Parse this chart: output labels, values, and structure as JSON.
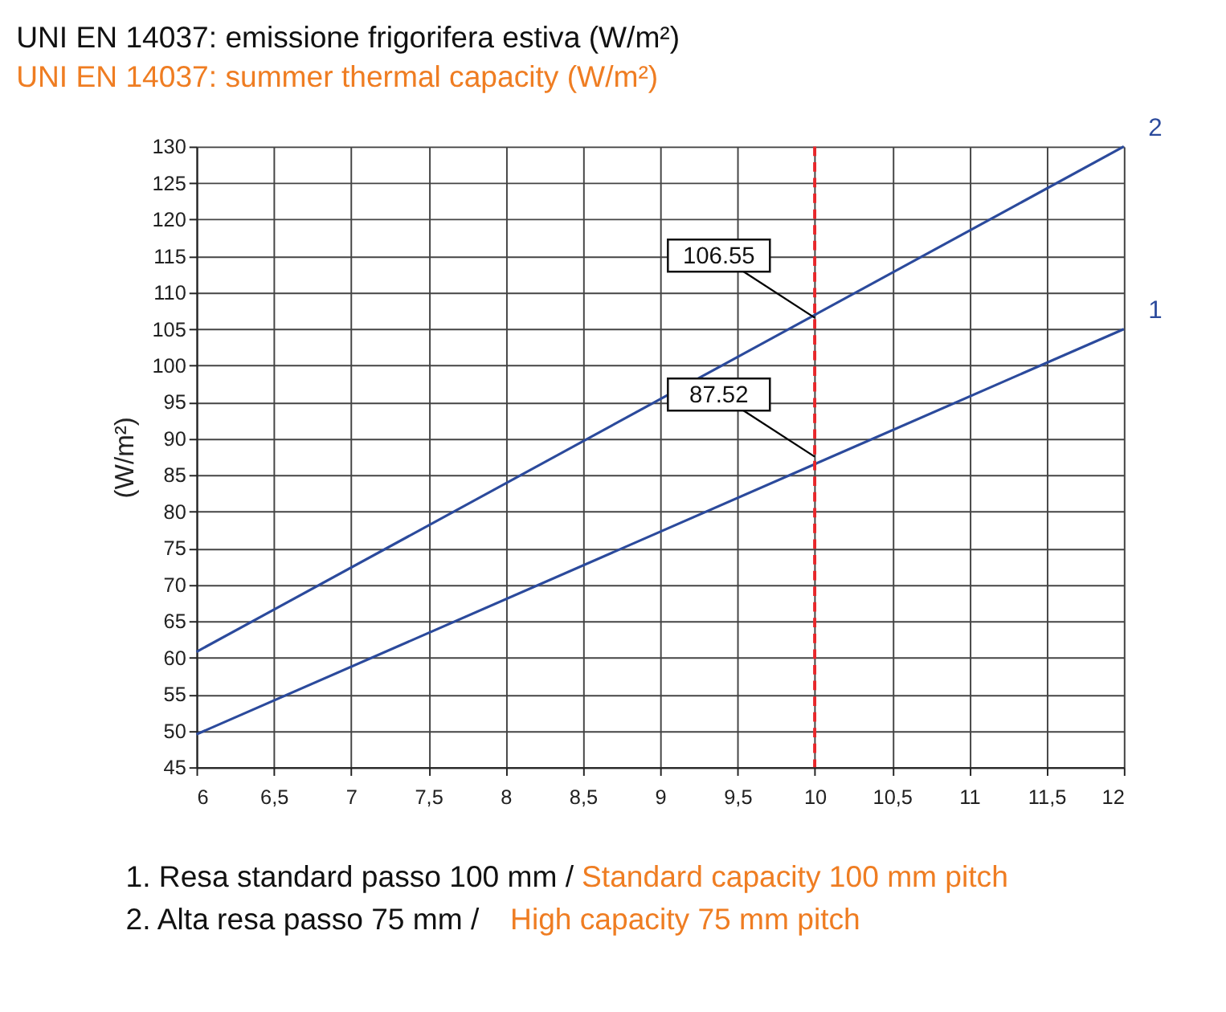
{
  "chart_data": {
    "type": "line",
    "title": "UNI EN 14037: emissione frigorifera estiva (W/m²)",
    "subtitle": "UNI EN 14037: summer thermal capacity (W/m²)",
    "ylabel": "(W/m²)",
    "x": [
      6,
      12
    ],
    "series": [
      {
        "name": "1",
        "color": "#2b4a9c",
        "values": [
          49.5,
          105
        ]
      },
      {
        "name": "2",
        "color": "#2b4a9c",
        "values": [
          60.8,
          130
        ]
      }
    ],
    "xlim": [
      6,
      12
    ],
    "xticks": [
      6,
      {
        "value": 6.5,
        "label": "6,5"
      },
      7,
      {
        "value": 7.5,
        "label": "7,5"
      },
      8,
      {
        "value": 8.5,
        "label": "8,5"
      },
      9,
      {
        "value": 9.5,
        "label": "9,5"
      },
      10,
      {
        "value": 10.5,
        "label": "10,5"
      },
      11,
      {
        "value": 11.5,
        "label": "11,5"
      },
      12
    ],
    "ylim": [
      45,
      130
    ],
    "yticks": [
      45,
      50,
      55,
      60,
      65,
      70,
      75,
      80,
      85,
      90,
      95,
      100,
      105,
      110,
      115,
      120,
      125,
      130
    ],
    "grid": true,
    "marker": "none",
    "line_style": "solid",
    "ref_lines": [
      {
        "axis": "x",
        "value": 10,
        "color": "#e8262a",
        "line_style": "dashed"
      }
    ],
    "annotations": [
      {
        "text": "106.55",
        "x": 10,
        "y": 106.55
      },
      {
        "text": "87.52",
        "x": 10,
        "y": 87.52
      },
      "1. Resa standard passo 100 mm /",
      "Standard capacity 100 mm pitch",
      "2. Alta resa passo 75 mm /",
      "High capacity 75 mm pitch"
    ]
  }
}
